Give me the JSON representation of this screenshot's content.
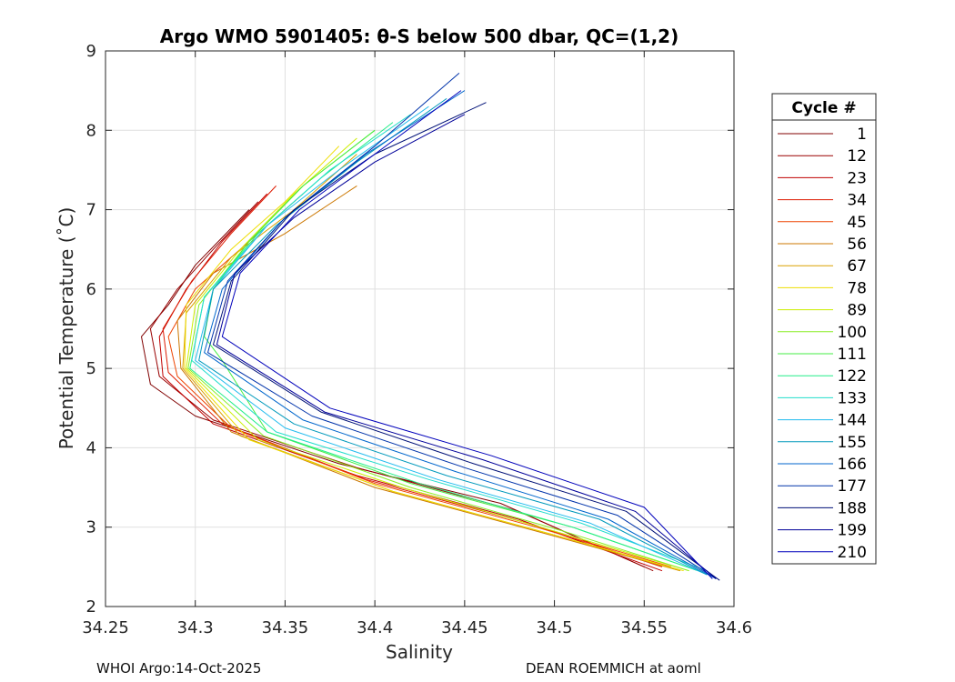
{
  "chart_data": {
    "type": "line",
    "title": "Argo WMO 5901405: θ-S below 500 dbar,  QC=(1,2)",
    "xlabel": "Salinity",
    "ylabel": "Potential Temperature (˚C)",
    "xlim": [
      34.25,
      34.6
    ],
    "ylim": [
      2,
      9
    ],
    "xticks": [
      "34.25",
      "34.3",
      "34.35",
      "34.4",
      "34.45",
      "34.5",
      "34.55",
      "34.6"
    ],
    "yticks": [
      "2",
      "3",
      "4",
      "5",
      "6",
      "7",
      "8",
      "9"
    ],
    "grid": true,
    "legend": {
      "title": "Cycle #",
      "placement": "outside-right",
      "entries": [
        {
          "label": "1",
          "color": "#800000"
        },
        {
          "label": "12",
          "color": "#990000"
        },
        {
          "label": "23",
          "color": "#c00000"
        },
        {
          "label": "34",
          "color": "#dd1a00"
        },
        {
          "label": "45",
          "color": "#ee4400"
        },
        {
          "label": "56",
          "color": "#cc7700"
        },
        {
          "label": "67",
          "color": "#d9a000"
        },
        {
          "label": "78",
          "color": "#eedd00"
        },
        {
          "label": "89",
          "color": "#ccee00"
        },
        {
          "label": "100",
          "color": "#88ee22"
        },
        {
          "label": "111",
          "color": "#44ee44"
        },
        {
          "label": "122",
          "color": "#22ee88"
        },
        {
          "label": "133",
          "color": "#22ddcc"
        },
        {
          "label": "144",
          "color": "#22bbee"
        },
        {
          "label": "155",
          "color": "#0099bb"
        },
        {
          "label": "166",
          "color": "#0066cc"
        },
        {
          "label": "177",
          "color": "#0033aa"
        },
        {
          "label": "188",
          "color": "#001177"
        },
        {
          "label": "199",
          "color": "#000099"
        },
        {
          "label": "210",
          "color": "#0000bb"
        }
      ]
    },
    "series": [
      {
        "name": "1",
        "color": "#800000",
        "points": [
          [
            34.33,
            7.0
          ],
          [
            34.3,
            6.3
          ],
          [
            34.285,
            5.8
          ],
          [
            34.27,
            5.4
          ],
          [
            34.275,
            4.8
          ],
          [
            34.3,
            4.4
          ],
          [
            34.38,
            3.8
          ],
          [
            34.47,
            3.3
          ],
          [
            34.55,
            2.5
          ]
        ]
      },
      {
        "name": "12",
        "color": "#990000",
        "points": [
          [
            34.335,
            7.1
          ],
          [
            34.31,
            6.5
          ],
          [
            34.29,
            6.0
          ],
          [
            34.275,
            5.5
          ],
          [
            34.28,
            4.9
          ],
          [
            34.31,
            4.35
          ],
          [
            34.39,
            3.75
          ],
          [
            34.48,
            3.2
          ],
          [
            34.555,
            2.45
          ]
        ]
      },
      {
        "name": "23",
        "color": "#c00000",
        "points": [
          [
            34.34,
            7.2
          ],
          [
            34.315,
            6.6
          ],
          [
            34.295,
            6.0
          ],
          [
            34.28,
            5.4
          ],
          [
            34.282,
            4.9
          ],
          [
            34.31,
            4.3
          ],
          [
            34.39,
            3.65
          ],
          [
            34.48,
            3.1
          ],
          [
            34.56,
            2.45
          ]
        ]
      },
      {
        "name": "34",
        "color": "#dd1a00",
        "points": [
          [
            34.345,
            7.3
          ],
          [
            34.32,
            6.7
          ],
          [
            34.298,
            6.1
          ],
          [
            34.282,
            5.5
          ],
          [
            34.285,
            4.95
          ],
          [
            34.315,
            4.3
          ],
          [
            34.395,
            3.6
          ],
          [
            34.485,
            3.05
          ],
          [
            34.56,
            2.5
          ]
        ]
      },
      {
        "name": "45",
        "color": "#ee4400",
        "points": [
          [
            34.36,
            7.2
          ],
          [
            34.33,
            6.6
          ],
          [
            34.3,
            6.0
          ],
          [
            34.285,
            5.4
          ],
          [
            34.29,
            4.9
          ],
          [
            34.32,
            4.25
          ],
          [
            34.4,
            3.55
          ],
          [
            34.49,
            3.0
          ],
          [
            34.565,
            2.5
          ]
        ]
      },
      {
        "name": "56",
        "color": "#cc7700",
        "points": [
          [
            34.39,
            7.3
          ],
          [
            34.35,
            6.7
          ],
          [
            34.31,
            6.2
          ],
          [
            34.29,
            5.6
          ],
          [
            34.292,
            5.0
          ],
          [
            34.32,
            4.2
          ],
          [
            34.4,
            3.5
          ],
          [
            34.49,
            2.95
          ],
          [
            34.57,
            2.45
          ]
        ]
      },
      {
        "name": "67",
        "color": "#d9a000",
        "points": [
          [
            34.39,
            7.7
          ],
          [
            34.355,
            7.0
          ],
          [
            34.32,
            6.4
          ],
          [
            34.295,
            5.7
          ],
          [
            34.293,
            5.0
          ],
          [
            34.325,
            4.15
          ],
          [
            34.41,
            3.45
          ],
          [
            34.5,
            2.9
          ],
          [
            34.57,
            2.45
          ]
        ]
      },
      {
        "name": "78",
        "color": "#eedd00",
        "points": [
          [
            34.38,
            7.8
          ],
          [
            34.35,
            7.1
          ],
          [
            34.32,
            6.5
          ],
          [
            34.295,
            5.8
          ],
          [
            34.294,
            5.0
          ],
          [
            34.33,
            4.1
          ],
          [
            34.41,
            3.45
          ],
          [
            34.5,
            2.9
          ],
          [
            34.572,
            2.45
          ]
        ]
      },
      {
        "name": "89",
        "color": "#ccee00",
        "points": [
          [
            34.39,
            7.9
          ],
          [
            34.355,
            7.2
          ],
          [
            34.325,
            6.5
          ],
          [
            34.3,
            5.8
          ],
          [
            34.295,
            5.0
          ],
          [
            34.335,
            4.1
          ],
          [
            34.415,
            3.5
          ],
          [
            34.5,
            2.95
          ],
          [
            34.575,
            2.45
          ]
        ]
      },
      {
        "name": "100",
        "color": "#88ee22",
        "points": [
          [
            34.4,
            8.0
          ],
          [
            34.36,
            7.3
          ],
          [
            34.33,
            6.6
          ],
          [
            34.302,
            5.8
          ],
          [
            34.296,
            5.0
          ],
          [
            34.338,
            4.15
          ],
          [
            34.42,
            3.5
          ],
          [
            34.505,
            2.95
          ],
          [
            34.575,
            2.45
          ]
        ]
      },
      {
        "name": "111",
        "color": "#44ee44",
        "points": [
          [
            34.4,
            8.0
          ],
          [
            34.36,
            7.3
          ],
          [
            34.33,
            6.6
          ],
          [
            34.31,
            6.0
          ],
          [
            34.305,
            5.4
          ],
          [
            34.315,
            5.1
          ],
          [
            34.34,
            4.2
          ],
          [
            34.42,
            3.55
          ],
          [
            34.51,
            3.0
          ],
          [
            34.58,
            2.45
          ]
        ]
      },
      {
        "name": "122",
        "color": "#22ee88",
        "points": [
          [
            34.41,
            8.1
          ],
          [
            34.37,
            7.4
          ],
          [
            34.335,
            6.7
          ],
          [
            34.305,
            5.9
          ],
          [
            34.297,
            5.0
          ],
          [
            34.34,
            4.2
          ],
          [
            34.425,
            3.55
          ],
          [
            34.51,
            3.0
          ],
          [
            34.58,
            2.45
          ]
        ]
      },
      {
        "name": "133",
        "color": "#22ddcc",
        "points": [
          [
            34.42,
            8.2
          ],
          [
            34.375,
            7.5
          ],
          [
            34.34,
            6.8
          ],
          [
            34.305,
            5.9
          ],
          [
            34.298,
            5.1
          ],
          [
            34.345,
            4.2
          ],
          [
            34.43,
            3.6
          ],
          [
            34.515,
            3.05
          ],
          [
            34.585,
            2.45
          ]
        ]
      },
      {
        "name": "144",
        "color": "#22bbee",
        "points": [
          [
            34.43,
            8.3
          ],
          [
            34.38,
            7.5
          ],
          [
            34.34,
            6.8
          ],
          [
            34.31,
            6.0
          ],
          [
            34.3,
            5.1
          ],
          [
            34.35,
            4.25
          ],
          [
            34.435,
            3.6
          ],
          [
            34.52,
            3.05
          ],
          [
            34.585,
            2.4
          ]
        ]
      },
      {
        "name": "155",
        "color": "#0099bb",
        "points": [
          [
            34.44,
            8.4
          ],
          [
            34.39,
            7.6
          ],
          [
            34.345,
            6.8
          ],
          [
            34.31,
            6.0
          ],
          [
            34.302,
            5.1
          ],
          [
            34.355,
            4.3
          ],
          [
            34.44,
            3.65
          ],
          [
            34.525,
            3.1
          ],
          [
            34.585,
            2.4
          ]
        ]
      },
      {
        "name": "166",
        "color": "#0066cc",
        "points": [
          [
            34.45,
            8.5
          ],
          [
            34.395,
            7.7
          ],
          [
            34.35,
            6.9
          ],
          [
            34.315,
            6.0
          ],
          [
            34.305,
            5.2
          ],
          [
            34.36,
            4.35
          ],
          [
            34.445,
            3.7
          ],
          [
            34.53,
            3.1
          ],
          [
            34.59,
            2.35
          ]
        ]
      },
      {
        "name": "177",
        "color": "#0033aa",
        "points": [
          [
            34.447,
            8.72
          ],
          [
            34.4,
            7.8
          ],
          [
            34.35,
            6.9
          ],
          [
            34.318,
            6.1
          ],
          [
            34.307,
            5.2
          ],
          [
            34.365,
            4.4
          ],
          [
            34.45,
            3.75
          ],
          [
            34.535,
            3.15
          ],
          [
            34.59,
            2.35
          ]
        ]
      },
      {
        "name": "188",
        "color": "#001177",
        "points": [
          [
            34.462,
            8.35
          ],
          [
            34.4,
            7.7
          ],
          [
            34.355,
            7.0
          ],
          [
            34.32,
            6.1
          ],
          [
            34.31,
            5.3
          ],
          [
            34.37,
            4.45
          ],
          [
            34.455,
            3.8
          ],
          [
            34.54,
            3.2
          ],
          [
            34.592,
            2.33
          ]
        ]
      },
      {
        "name": "199",
        "color": "#000099",
        "points": [
          [
            34.45,
            8.2
          ],
          [
            34.4,
            7.6
          ],
          [
            34.355,
            6.9
          ],
          [
            34.322,
            6.2
          ],
          [
            34.312,
            5.3
          ],
          [
            34.372,
            4.45
          ],
          [
            34.46,
            3.85
          ],
          [
            34.545,
            3.2
          ],
          [
            34.59,
            2.35
          ]
        ]
      },
      {
        "name": "210",
        "color": "#0000bb",
        "points": [
          [
            34.448,
            8.5
          ],
          [
            34.4,
            7.7
          ],
          [
            34.358,
            7.0
          ],
          [
            34.325,
            6.2
          ],
          [
            34.315,
            5.4
          ],
          [
            34.375,
            4.5
          ],
          [
            34.465,
            3.9
          ],
          [
            34.55,
            3.25
          ],
          [
            34.588,
            2.35
          ]
        ]
      }
    ]
  },
  "footer": {
    "left": "WHOI Argo:14-Oct-2025",
    "right": "DEAN ROEMMICH at aoml"
  }
}
